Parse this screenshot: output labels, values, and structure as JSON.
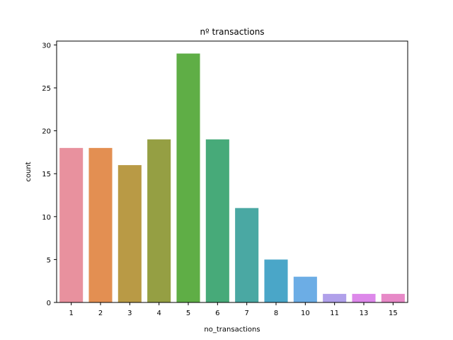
{
  "chart_data": {
    "type": "bar",
    "title": "nº transactions",
    "xlabel": "no_transactions",
    "ylabel": "count",
    "categories": [
      "1",
      "2",
      "3",
      "4",
      "5",
      "6",
      "7",
      "8",
      "10",
      "11",
      "13",
      "15"
    ],
    "values": [
      18,
      18,
      16,
      19,
      29,
      19,
      11,
      5,
      3,
      1,
      1,
      1
    ],
    "colors": [
      "#e8919e",
      "#e38f52",
      "#b99a45",
      "#959f43",
      "#5fae46",
      "#47aa79",
      "#4aa8a3",
      "#4aa6c8",
      "#6cade5",
      "#b0a0ea",
      "#dd88ea",
      "#e789c7"
    ],
    "yticks": [
      0,
      5,
      10,
      15,
      20,
      25,
      30
    ],
    "ylim": [
      0,
      30.45
    ],
    "grid": false,
    "legend": "none"
  }
}
